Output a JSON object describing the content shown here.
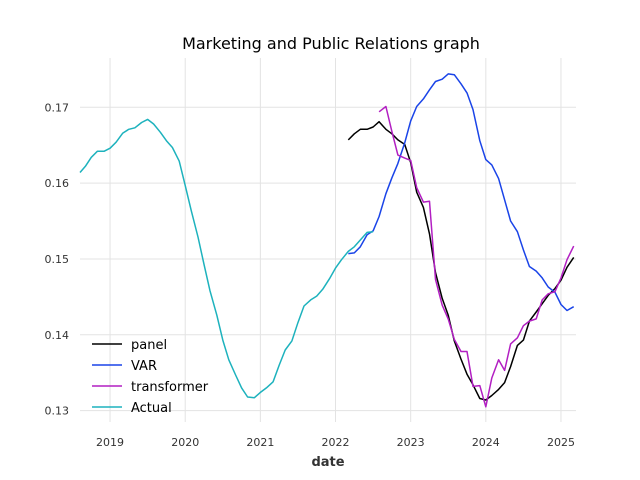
{
  "chart_data": {
    "type": "line",
    "title": "Marketing and Public Relations graph",
    "xlabel": "date",
    "ylabel": "",
    "xlim": [
      2018.6,
      2025.2
    ],
    "ylim": [
      0.1285,
      0.1765
    ],
    "x_ticks": [
      2019,
      2020,
      2021,
      2022,
      2023,
      2024,
      2025
    ],
    "y_ticks": [
      0.13,
      0.14,
      0.15,
      0.16,
      0.17
    ],
    "y_tick_labels": [
      "0.13",
      "0.14",
      "0.15",
      "0.16",
      "0.17"
    ],
    "grid": true,
    "legend_position": "lower-left",
    "series": [
      {
        "name": "panel",
        "color": "#000000",
        "x": [
          2022.17,
          2022.25,
          2022.33,
          2022.42,
          2022.5,
          2022.58,
          2022.67,
          2022.75,
          2022.83,
          2022.92,
          2023.0,
          2023.08,
          2023.17,
          2023.25,
          2023.33,
          2023.42,
          2023.5,
          2023.58,
          2023.67,
          2023.75,
          2023.83,
          2023.92,
          2024.0,
          2024.08,
          2024.17,
          2024.25,
          2024.33,
          2024.42,
          2024.5,
          2024.58,
          2024.67,
          2024.75,
          2024.83,
          2024.92,
          2025.0,
          2025.08,
          2025.17
        ],
        "y": [
          0.1657,
          0.1665,
          0.1671,
          0.1671,
          0.1674,
          0.1681,
          0.1671,
          0.1665,
          0.1657,
          0.1651,
          0.1627,
          0.1588,
          0.1568,
          0.1533,
          0.1482,
          0.1448,
          0.1426,
          0.1392,
          0.1368,
          0.1348,
          0.1334,
          0.1316,
          0.1314,
          0.132,
          0.1328,
          0.1337,
          0.1358,
          0.1386,
          0.1393,
          0.1418,
          0.143,
          0.1441,
          0.1452,
          0.1461,
          0.1472,
          0.1489,
          0.1502
        ]
      },
      {
        "name": "VAR",
        "color": "#1a44e8",
        "x": [
          2022.17,
          2022.25,
          2022.33,
          2022.42,
          2022.5,
          2022.58,
          2022.67,
          2022.75,
          2022.83,
          2022.92,
          2023.0,
          2023.08,
          2023.17,
          2023.25,
          2023.33,
          2023.42,
          2023.5,
          2023.58,
          2023.67,
          2023.75,
          2023.83,
          2023.92,
          2024.0,
          2024.08,
          2024.17,
          2024.25,
          2024.33,
          2024.42,
          2024.5,
          2024.58,
          2024.67,
          2024.75,
          2024.83,
          2024.92,
          2025.0,
          2025.08,
          2025.17
        ],
        "y": [
          0.1507,
          0.1508,
          0.1516,
          0.1532,
          0.1537,
          0.1556,
          0.1586,
          0.1607,
          0.1626,
          0.1653,
          0.1682,
          0.1701,
          0.1711,
          0.1723,
          0.1734,
          0.1737,
          0.1744,
          0.1743,
          0.1731,
          0.1719,
          0.1697,
          0.1656,
          0.1631,
          0.1624,
          0.1606,
          0.1578,
          0.155,
          0.1536,
          0.1512,
          0.149,
          0.1484,
          0.1475,
          0.1463,
          0.1456,
          0.144,
          0.1432,
          0.1437
        ]
      },
      {
        "name": "transformer",
        "color": "#b21fc2",
        "x": [
          2022.58,
          2022.67,
          2022.75,
          2022.83,
          2022.92,
          2023.0,
          2023.08,
          2023.17,
          2023.25,
          2023.33,
          2023.42,
          2023.5,
          2023.58,
          2023.67,
          2023.75,
          2023.83,
          2023.92,
          2024.0,
          2024.08,
          2024.17,
          2024.25,
          2024.33,
          2024.42,
          2024.5,
          2024.58,
          2024.67,
          2024.75,
          2024.83,
          2024.92,
          2025.0,
          2025.08,
          2025.17
        ],
        "y": [
          0.1694,
          0.1701,
          0.1668,
          0.1637,
          0.1633,
          0.163,
          0.1594,
          0.1575,
          0.1576,
          0.1473,
          0.1439,
          0.1421,
          0.1394,
          0.1378,
          0.1378,
          0.1332,
          0.1333,
          0.1305,
          0.1343,
          0.1367,
          0.1353,
          0.1388,
          0.1396,
          0.1412,
          0.1418,
          0.1421,
          0.1446,
          0.1454,
          0.1457,
          0.1475,
          0.1499,
          0.1517
        ]
      },
      {
        "name": "Actual",
        "color": "#1db2bd",
        "x": [
          2018.6,
          2018.67,
          2018.75,
          2018.83,
          2018.92,
          2019.0,
          2019.08,
          2019.17,
          2019.25,
          2019.33,
          2019.42,
          2019.5,
          2019.58,
          2019.67,
          2019.75,
          2019.83,
          2019.92,
          2020.0,
          2020.08,
          2020.17,
          2020.25,
          2020.33,
          2020.42,
          2020.5,
          2020.58,
          2020.67,
          2020.75,
          2020.83,
          2020.92,
          2021.0,
          2021.08,
          2021.17,
          2021.25,
          2021.33,
          2021.42,
          2021.5,
          2021.58,
          2021.67,
          2021.75,
          2021.83,
          2021.92,
          2022.0,
          2022.08,
          2022.17,
          2022.25,
          2022.33,
          2022.42,
          2022.5
        ],
        "y": [
          0.1614,
          0.1622,
          0.1634,
          0.1642,
          0.1642,
          0.1646,
          0.1654,
          0.1666,
          0.1671,
          0.1673,
          0.168,
          0.1684,
          0.1678,
          0.1667,
          0.1656,
          0.1647,
          0.1629,
          0.1597,
          0.1564,
          0.1529,
          0.1493,
          0.1458,
          0.1426,
          0.1393,
          0.1367,
          0.1347,
          0.133,
          0.1318,
          0.1317,
          0.1324,
          0.133,
          0.1338,
          0.136,
          0.138,
          0.1392,
          0.1416,
          0.1438,
          0.1446,
          0.1451,
          0.146,
          0.1474,
          0.1488,
          0.1499,
          0.151,
          0.1516,
          0.1525,
          0.1535,
          0.1536
        ]
      }
    ]
  }
}
